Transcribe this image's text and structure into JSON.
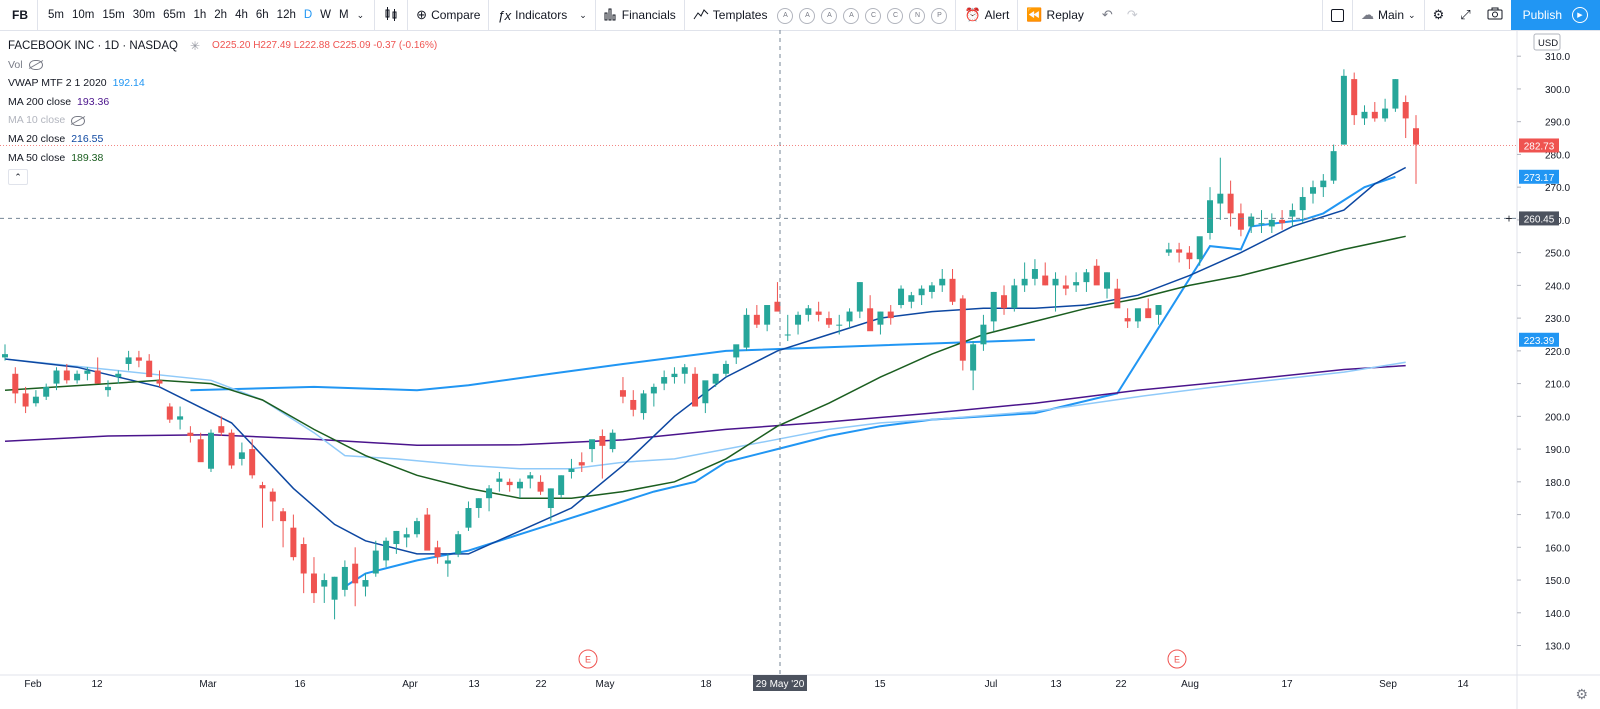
{
  "toolbar": {
    "symbol": "FB",
    "intervals": [
      "5m",
      "10m",
      "15m",
      "30m",
      "65m",
      "1h",
      "2h",
      "4h",
      "6h",
      "12h",
      "D",
      "W",
      "M"
    ],
    "active_interval": "D",
    "compare": "Compare",
    "indicators": "Indicators",
    "financials": "Financials",
    "templates": "Templates",
    "template_letters": [
      "A",
      "A",
      "A",
      "A",
      "C",
      "C",
      "N",
      "P"
    ],
    "alert": "Alert",
    "replay": "Replay",
    "layout": "Main",
    "publish": "Publish"
  },
  "legend": {
    "title": "FACEBOOK INC · 1D · NASDAQ",
    "ohlc": "O225.20 H227.49 L222.88 C225.09 -0.37 (-0.16%)",
    "rows": [
      {
        "label": "Vol",
        "value": ""
      },
      {
        "label": "VWAP MTF 2 1 2020",
        "value": "192.14"
      },
      {
        "label": "MA 200 close",
        "value": "193.36"
      },
      {
        "label": "MA 10 close",
        "value": ""
      },
      {
        "label": "MA 20 close",
        "value": "216.55"
      },
      {
        "label": "MA 50 close",
        "value": "189.38"
      }
    ]
  },
  "colors": {
    "up": "#26a69a",
    "down": "#ef5350",
    "vwap": "#2196f3",
    "ma200": "#4a148c",
    "ma10": "#90caf9",
    "ma20": "#0d47a1",
    "ma50": "#1b5e20"
  },
  "chart_data": {
    "type": "candlestick",
    "currency": "USD",
    "ylim": [
      121,
      318
    ],
    "y_ticks": [
      130,
      140,
      150,
      160,
      170,
      180,
      190,
      200,
      210,
      220,
      230,
      240,
      250,
      260,
      270,
      280,
      290,
      300,
      310
    ],
    "x_ticks": [
      "Feb",
      "12",
      "Mar",
      "16",
      "Apr",
      "13",
      "22",
      "May",
      "18",
      "15",
      "Jul",
      "13",
      "22",
      "Aug",
      "17",
      "Sep",
      "14"
    ],
    "crosshair": {
      "date_label": "29 May '20",
      "price_label": "260.45",
      "price": 260.45
    },
    "price_labels": [
      {
        "value": 282.73,
        "text": "282.73",
        "color": "#ef5350"
      },
      {
        "value": 273.17,
        "text": "273.17",
        "color": "#2196f3"
      },
      {
        "value": 223.39,
        "text": "223.39",
        "color": "#2196f3"
      }
    ],
    "earnings_markers": [
      "E",
      "E"
    ],
    "candles_ohlc": [
      [
        218,
        222,
        217,
        219
      ],
      [
        213,
        215,
        204,
        207
      ],
      [
        207,
        209,
        201,
        203
      ],
      [
        204,
        208,
        203,
        206
      ],
      [
        206,
        210,
        205,
        209
      ],
      [
        210,
        215,
        208,
        214
      ],
      [
        214,
        216,
        210,
        211
      ],
      [
        211,
        214,
        210,
        213
      ],
      [
        213,
        215,
        211,
        214
      ],
      [
        214,
        218,
        212,
        210
      ],
      [
        208,
        211,
        206,
        209
      ],
      [
        212,
        214,
        210,
        213
      ],
      [
        216,
        220,
        214,
        218
      ],
      [
        218,
        220,
        215,
        217
      ],
      [
        217,
        219,
        212,
        212
      ],
      [
        211,
        214,
        209,
        210
      ],
      [
        203,
        204,
        198,
        199
      ],
      [
        199,
        203,
        196,
        200
      ],
      [
        195,
        197,
        192,
        194
      ],
      [
        193,
        195,
        187,
        186
      ],
      [
        184,
        196,
        183,
        195
      ],
      [
        197,
        200,
        194,
        195
      ],
      [
        195,
        196,
        184,
        185
      ],
      [
        187,
        192,
        185,
        189
      ],
      [
        190,
        193,
        181,
        182
      ],
      [
        179,
        180,
        166,
        178
      ],
      [
        177,
        178,
        168,
        174
      ],
      [
        171,
        172,
        160,
        168
      ],
      [
        166,
        170,
        156,
        157
      ],
      [
        161,
        163,
        146,
        152
      ],
      [
        152,
        157,
        143,
        146
      ],
      [
        148,
        152,
        143,
        150
      ],
      [
        144,
        151,
        138,
        151
      ],
      [
        147,
        156,
        145,
        154
      ],
      [
        155,
        160,
        142,
        149
      ],
      [
        148,
        152,
        145,
        150
      ],
      [
        152,
        162,
        151,
        159
      ],
      [
        156,
        163,
        154,
        162
      ],
      [
        161,
        165,
        158,
        165
      ],
      [
        163,
        166,
        160,
        164
      ],
      [
        164,
        169,
        163,
        168
      ],
      [
        170,
        172,
        165,
        159
      ],
      [
        160,
        162,
        155,
        157
      ],
      [
        155,
        158,
        151,
        156
      ],
      [
        158,
        165,
        157,
        164
      ],
      [
        166,
        174,
        165,
        172
      ],
      [
        172,
        175,
        169,
        175
      ],
      [
        175,
        179,
        171,
        178
      ],
      [
        180,
        183,
        177,
        181
      ],
      [
        180,
        181,
        177,
        179
      ],
      [
        178,
        181,
        175,
        180
      ],
      [
        181,
        183,
        178,
        182
      ],
      [
        180,
        182,
        176,
        177
      ],
      [
        172,
        178,
        168,
        178
      ],
      [
        176,
        182,
        175,
        182
      ],
      [
        183,
        187,
        181,
        184
      ],
      [
        186,
        189,
        183,
        185
      ],
      [
        190,
        192,
        186,
        193
      ],
      [
        194,
        196,
        181,
        191
      ],
      [
        190,
        196,
        189,
        195
      ],
      [
        208,
        212,
        204,
        206
      ],
      [
        205,
        208,
        200,
        202
      ],
      [
        201,
        208,
        199,
        207
      ],
      [
        207,
        210,
        203,
        209
      ],
      [
        210,
        214,
        208,
        212
      ],
      [
        212,
        215,
        210,
        213
      ],
      [
        213,
        216,
        210,
        215
      ],
      [
        213,
        215,
        207,
        203
      ],
      [
        204,
        207,
        201,
        211
      ],
      [
        210,
        213,
        209,
        213
      ],
      [
        213,
        217,
        212,
        216
      ],
      [
        218,
        221,
        216,
        222
      ],
      [
        221,
        233,
        220,
        231
      ],
      [
        231,
        234,
        227,
        228
      ],
      [
        228,
        232,
        226,
        234
      ],
      [
        235,
        241,
        233,
        232
      ],
      [
        225,
        231,
        223,
        225
      ],
      [
        228,
        232,
        225,
        231
      ],
      [
        231,
        234,
        229,
        233
      ],
      [
        232,
        235,
        229,
        231
      ],
      [
        230,
        232,
        227,
        228
      ],
      [
        228,
        231,
        225,
        228
      ],
      [
        229,
        233,
        227,
        232
      ],
      [
        232,
        241,
        230,
        241
      ],
      [
        233,
        237,
        227,
        226
      ],
      [
        228,
        232,
        225,
        232
      ],
      [
        232,
        234,
        228,
        230
      ],
      [
        234,
        240,
        233,
        239
      ],
      [
        235,
        238,
        233,
        237
      ],
      [
        237,
        240,
        234,
        239
      ],
      [
        238,
        241,
        236,
        240
      ],
      [
        240,
        245,
        238,
        242
      ],
      [
        242,
        245,
        234,
        235
      ],
      [
        236,
        237,
        214,
        217
      ],
      [
        214,
        223,
        208,
        222
      ],
      [
        222,
        231,
        220,
        228
      ],
      [
        229,
        238,
        226,
        238
      ],
      [
        237,
        240,
        231,
        233
      ],
      [
        233,
        242,
        232,
        240
      ],
      [
        240,
        247,
        238,
        242
      ],
      [
        242,
        248,
        240,
        245
      ],
      [
        243,
        247,
        240,
        240
      ],
      [
        240,
        244,
        232,
        242
      ],
      [
        240,
        243,
        237,
        239
      ],
      [
        240,
        244,
        238,
        241
      ],
      [
        241,
        245,
        238,
        244
      ],
      [
        246,
        248,
        241,
        240
      ],
      [
        239,
        244,
        236,
        244
      ],
      [
        239,
        242,
        234,
        233
      ],
      [
        230,
        233,
        227,
        229
      ],
      [
        229,
        232,
        227,
        233
      ],
      [
        233,
        236,
        231,
        230
      ],
      [
        231,
        234,
        228,
        234
      ],
      [
        250,
        253,
        249,
        251
      ],
      [
        251,
        253,
        247,
        250
      ],
      [
        250,
        252,
        245,
        248
      ],
      [
        248,
        252,
        246,
        255
      ],
      [
        256,
        270,
        254,
        266
      ],
      [
        265,
        279,
        260,
        268
      ],
      [
        268,
        272,
        258,
        262
      ],
      [
        262,
        265,
        255,
        257
      ],
      [
        258,
        262,
        256,
        261
      ],
      [
        259,
        263,
        256,
        259
      ],
      [
        258,
        262,
        256,
        260
      ],
      [
        260,
        263,
        257,
        259
      ],
      [
        261,
        265,
        258,
        263
      ],
      [
        263,
        270,
        259,
        267
      ],
      [
        268,
        272,
        265,
        270
      ],
      [
        270,
        274,
        267,
        272
      ],
      [
        272,
        283,
        271,
        281
      ],
      [
        283,
        306,
        283,
        304
      ],
      [
        303,
        305,
        289,
        292
      ],
      [
        291,
        295,
        289,
        293
      ],
      [
        293,
        296,
        290,
        291
      ],
      [
        291,
        297,
        290,
        294
      ],
      [
        294,
        303,
        293,
        303
      ],
      [
        296,
        298,
        285,
        291
      ],
      [
        288,
        292,
        271,
        283
      ]
    ],
    "series": [
      {
        "name": "VWAP MTF 2 1 2020",
        "color": "#2196f3",
        "width": 2,
        "values": [
          [
            18,
            208
          ],
          [
            30,
            209
          ],
          [
            40,
            208
          ],
          [
            45,
            209.5
          ],
          [
            53,
            213
          ],
          [
            60,
            216
          ],
          [
            70,
            220
          ],
          [
            100,
            223.39
          ]
        ]
      },
      {
        "name": "VWAP MTF band",
        "color": "#2196f3",
        "width": 2,
        "values": [
          [
            33,
            148
          ],
          [
            35,
            152
          ],
          [
            40,
            156
          ],
          [
            45,
            159
          ],
          [
            48,
            162
          ],
          [
            52,
            166
          ],
          [
            58,
            172
          ],
          [
            63,
            177
          ],
          [
            67,
            180
          ],
          [
            70,
            186
          ],
          [
            75,
            190
          ],
          [
            80,
            194
          ],
          [
            85,
            197
          ],
          [
            90,
            199
          ],
          [
            100,
            201
          ],
          [
            108,
            207
          ],
          [
            117,
            252
          ],
          [
            120,
            251
          ],
          [
            121,
            258
          ],
          [
            126,
            260
          ],
          [
            128,
            262
          ],
          [
            132,
            270
          ],
          [
            135,
            273.17
          ]
        ]
      },
      {
        "name": "MA 200 close",
        "color": "#4a148c",
        "width": 1.5,
        "values": [
          [
            0,
            192.4
          ],
          [
            10,
            194
          ],
          [
            20,
            194.4
          ],
          [
            30,
            193
          ],
          [
            40,
            191.2
          ],
          [
            50,
            191.3
          ],
          [
            60,
            192.8
          ],
          [
            70,
            196
          ],
          [
            80,
            198.3
          ],
          [
            90,
            201
          ],
          [
            100,
            204
          ],
          [
            110,
            208
          ],
          [
            120,
            211
          ],
          [
            130,
            214.3
          ],
          [
            136,
            215.5
          ]
        ]
      },
      {
        "name": "MA 10 close",
        "color": "#90caf9",
        "width": 1.5,
        "values": [
          [
            0,
            217.5
          ],
          [
            10,
            214.3
          ],
          [
            20,
            211
          ],
          [
            25,
            205
          ],
          [
            30,
            195
          ],
          [
            33,
            188
          ],
          [
            38,
            187
          ],
          [
            45,
            185
          ],
          [
            50,
            184
          ],
          [
            55,
            184
          ],
          [
            60,
            186
          ],
          [
            65,
            187
          ],
          [
            70,
            190
          ],
          [
            75,
            193
          ],
          [
            80,
            196
          ],
          [
            85,
            198
          ],
          [
            90,
            199
          ],
          [
            100,
            201.5
          ],
          [
            110,
            206
          ],
          [
            120,
            210
          ],
          [
            130,
            213.5
          ],
          [
            136,
            216.5
          ]
        ]
      },
      {
        "name": "MA 20 close",
        "color": "#0d47a1",
        "width": 1.5,
        "values": [
          [
            0,
            217.5
          ],
          [
            7,
            215
          ],
          [
            15,
            209
          ],
          [
            22,
            198
          ],
          [
            28,
            178
          ],
          [
            32,
            167
          ],
          [
            35,
            162
          ],
          [
            40,
            158
          ],
          [
            45,
            158
          ],
          [
            50,
            165
          ],
          [
            55,
            172
          ],
          [
            60,
            185
          ],
          [
            65,
            200
          ],
          [
            70,
            212
          ],
          [
            75,
            220
          ],
          [
            80,
            225
          ],
          [
            85,
            230
          ],
          [
            90,
            232
          ],
          [
            95,
            233
          ],
          [
            100,
            233
          ],
          [
            105,
            234
          ],
          [
            110,
            237
          ],
          [
            115,
            243
          ],
          [
            120,
            250
          ],
          [
            125,
            258
          ],
          [
            130,
            263
          ],
          [
            133,
            271
          ],
          [
            136,
            276
          ]
        ]
      },
      {
        "name": "MA 50 close",
        "color": "#1b5e20",
        "width": 1.5,
        "values": [
          [
            0,
            208
          ],
          [
            10,
            210
          ],
          [
            15,
            211
          ],
          [
            20,
            210
          ],
          [
            25,
            205
          ],
          [
            30,
            196
          ],
          [
            35,
            188
          ],
          [
            40,
            182
          ],
          [
            45,
            178
          ],
          [
            50,
            175
          ],
          [
            55,
            175
          ],
          [
            60,
            177
          ],
          [
            65,
            180
          ],
          [
            70,
            187
          ],
          [
            75,
            197
          ],
          [
            80,
            204
          ],
          [
            85,
            212
          ],
          [
            90,
            219
          ],
          [
            95,
            225
          ],
          [
            100,
            229
          ],
          [
            105,
            233
          ],
          [
            110,
            236
          ],
          [
            115,
            240
          ],
          [
            120,
            243
          ],
          [
            125,
            247
          ],
          [
            130,
            251
          ],
          [
            136,
            255
          ]
        ]
      }
    ]
  }
}
